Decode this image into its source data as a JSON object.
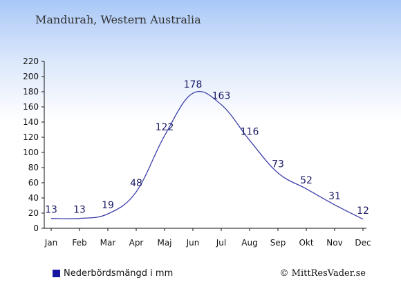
{
  "header": {
    "title": "Mandurah, Western Australia"
  },
  "legend": {
    "label": "Nederbördsmängd i mm"
  },
  "footer": {
    "copyright": "© MittResVader.se"
  },
  "colors": {
    "line": "#3a3ea8",
    "swatch": "#1515a0",
    "axis": "#111111"
  },
  "chart_data": {
    "type": "line",
    "categories": [
      "Jan",
      "Feb",
      "Mar",
      "Apr",
      "Maj",
      "Jun",
      "Jul",
      "Aug",
      "Sep",
      "Okt",
      "Nov",
      "Dec"
    ],
    "series": [
      {
        "name": "Nederbördsmängd i mm",
        "values": [
          13,
          13,
          19,
          48,
          122,
          178,
          163,
          116,
          73,
          52,
          31,
          12
        ]
      }
    ],
    "data_labels": [
      "13",
      "13",
      "19",
      "48",
      "122",
      "178",
      "163",
      "116",
      "73",
      "52",
      "31",
      "12"
    ],
    "yticks": [
      0,
      20,
      40,
      60,
      80,
      100,
      120,
      140,
      160,
      180,
      200,
      220
    ],
    "ylim": [
      0,
      220
    ],
    "title": "",
    "xlabel": "",
    "ylabel": "",
    "grid": false,
    "legend_position": "bottom-left"
  }
}
